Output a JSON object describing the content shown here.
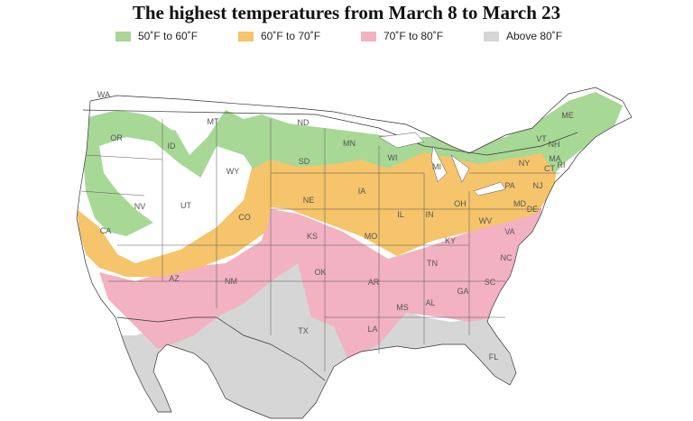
{
  "title": "The highest temperatures from March 8 to March 23",
  "legend": [
    {
      "label": "50˚F to 60˚F",
      "color": "#a8d896"
    },
    {
      "label": "60˚F to 70˚F",
      "color": "#f5c46b"
    },
    {
      "label": "70˚F to 80˚F",
      "color": "#f2b2c2"
    },
    {
      "label": "Above 80˚F",
      "color": "#d6d6d6"
    }
  ],
  "colors": {
    "land_under_50": "#ffffff",
    "borders": "#333333",
    "water": "#ffffff"
  },
  "state_labels": [
    "WA",
    "MT",
    "ND",
    "MN",
    "ME",
    "OR",
    "ID",
    "SD",
    "WI",
    "MI",
    "NY",
    "VT",
    "NH",
    "MA",
    "CT",
    "RI",
    "WY",
    "IA",
    "PA",
    "NJ",
    "NV",
    "UT",
    "CO",
    "NE",
    "IL",
    "IN",
    "OH",
    "MD",
    "DE",
    "WV",
    "CA",
    "KS",
    "MO",
    "KY",
    "VA",
    "OK",
    "TN",
    "NC",
    "AZ",
    "NM",
    "AR",
    "SC",
    "MS",
    "AL",
    "GA",
    "TX",
    "LA",
    "FL"
  ]
}
